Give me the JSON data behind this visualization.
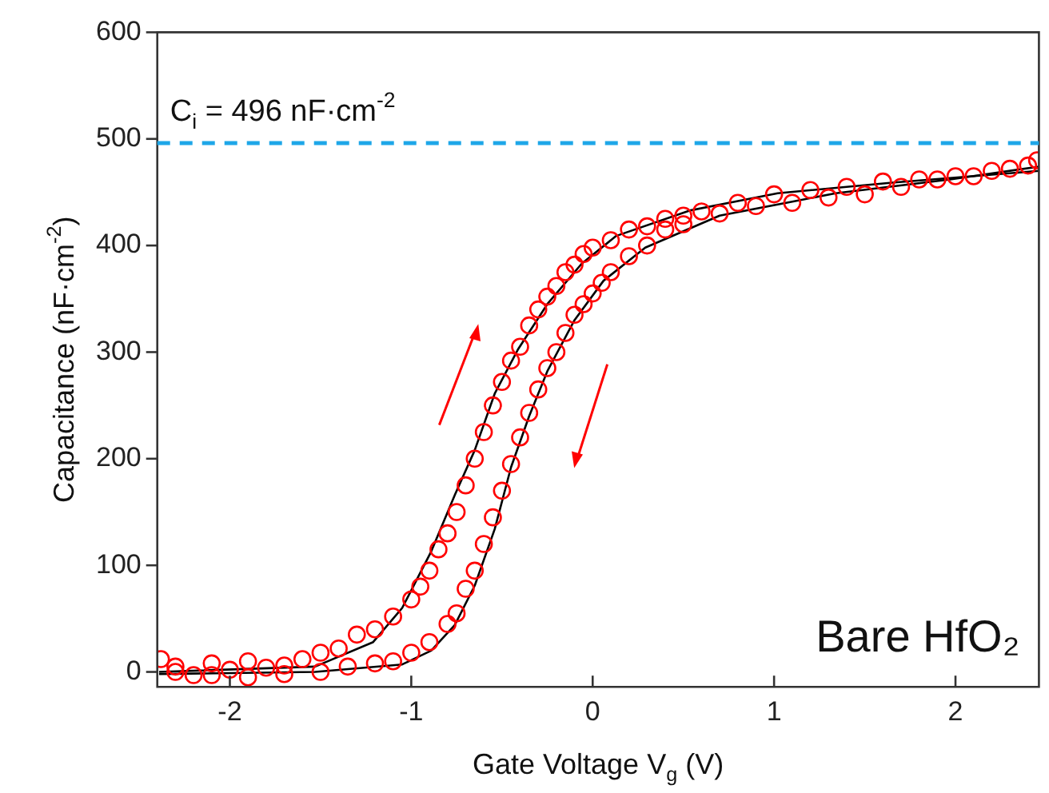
{
  "chart_data": {
    "type": "scatter",
    "xlabel": "Gate Voltage V$_{g}$ (V)",
    "ylabel": "Capacitance (nF·cm$^{-2}$)",
    "xlim": [
      -2.4,
      2.46
    ],
    "ylim": [
      -14,
      600
    ],
    "xticks": [
      -2,
      -1,
      0,
      1,
      2
    ],
    "yticks": [
      0,
      100,
      200,
      300,
      400,
      500,
      600
    ],
    "marker": "circle",
    "ref_lines": [
      {
        "axis": "y",
        "value": 496,
        "label": "C$_{i}$ = 496 nF·cm$^{-2}$",
        "color": "#1ea7e8",
        "line_style": "dashed"
      }
    ],
    "annotations": [
      "Bare HfO₂"
    ],
    "series": [
      {
        "color": "#ff0000",
        "x": [
          -2.38,
          -2.3,
          -2.2,
          -2.1,
          -2.0,
          -1.9,
          -1.8,
          -1.7,
          -1.6,
          -1.5,
          -1.4,
          -1.3,
          -1.2,
          -1.1,
          -1.0,
          -0.95,
          -0.9,
          -0.85,
          -0.8,
          -0.75,
          -0.7,
          -0.65,
          -0.6,
          -0.55,
          -0.5,
          -0.45,
          -0.4,
          -0.35,
          -0.3,
          -0.25,
          -0.2,
          -0.15,
          -0.1,
          -0.05,
          0.0,
          0.1,
          0.2,
          0.3,
          0.4,
          0.5,
          0.6,
          0.8,
          1.0,
          1.2,
          1.4,
          1.6,
          1.8,
          2.0,
          2.2,
          2.4
        ],
        "values": [
          12,
          5,
          -3,
          8,
          2,
          10,
          4,
          6,
          12,
          18,
          22,
          35,
          40,
          52,
          68,
          80,
          95,
          115,
          130,
          150,
          175,
          200,
          225,
          250,
          272,
          292,
          305,
          325,
          340,
          352,
          362,
          375,
          382,
          392,
          398,
          405,
          415,
          418,
          425,
          428,
          432,
          440,
          448,
          452,
          455,
          460,
          462,
          465,
          470,
          475
        ]
      },
      {
        "color": "#ff0000",
        "x": [
          2.45,
          2.3,
          2.1,
          1.9,
          1.7,
          1.5,
          1.3,
          1.1,
          0.9,
          0.7,
          0.5,
          0.4,
          0.3,
          0.2,
          0.1,
          0.05,
          0.0,
          -0.05,
          -0.1,
          -0.15,
          -0.2,
          -0.25,
          -0.3,
          -0.35,
          -0.4,
          -0.45,
          -0.5,
          -0.55,
          -0.6,
          -0.65,
          -0.7,
          -0.75,
          -0.8,
          -0.9,
          -1.0,
          -1.1,
          -1.2,
          -1.35,
          -1.5,
          -1.7,
          -1.9,
          -2.1,
          -2.3
        ],
        "values": [
          480,
          472,
          465,
          462,
          455,
          448,
          445,
          440,
          437,
          430,
          420,
          415,
          400,
          390,
          375,
          365,
          355,
          345,
          335,
          318,
          300,
          285,
          265,
          243,
          220,
          195,
          170,
          145,
          120,
          95,
          78,
          55,
          45,
          28,
          18,
          10,
          8,
          5,
          0,
          -2,
          -5,
          -3,
          0
        ]
      },
      {
        "type": "line",
        "marker": "none",
        "color": "#000000",
        "x": [
          -2.39,
          -1.53,
          -1.21,
          -1.05,
          -0.89,
          -0.76,
          -0.65,
          -0.54,
          -0.41,
          -0.25,
          -0.06,
          0.13,
          0.54,
          1.02,
          1.65,
          2.46
        ],
        "values": [
          0,
          5,
          28,
          60,
          113,
          166,
          208,
          261,
          303,
          345,
          383,
          409,
          433,
          449,
          459,
          470
        ]
      },
      {
        "type": "line",
        "marker": "none",
        "color": "#000000",
        "x": [
          -2.39,
          -1.53,
          -1.05,
          -0.89,
          -0.76,
          -0.65,
          -0.54,
          -0.45,
          -0.35,
          -0.25,
          -0.1,
          0.06,
          0.29,
          0.7,
          1.34,
          1.97,
          2.46
        ],
        "values": [
          -2,
          0,
          7,
          20,
          44,
          81,
          134,
          192,
          240,
          282,
          330,
          367,
          398,
          428,
          449,
          462,
          474
        ]
      }
    ]
  }
}
